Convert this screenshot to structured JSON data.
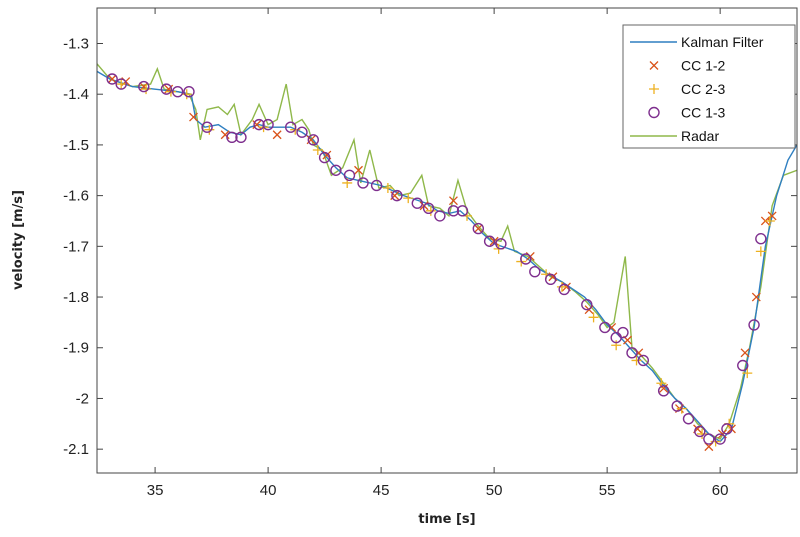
{
  "chart_data": {
    "type": "line",
    "title": "",
    "xlabel": "time [s]",
    "ylabel": "velocity [m/s]",
    "xlim": [
      32.43,
      63.4
    ],
    "ylim": [
      -2.147,
      -1.23
    ],
    "xticks": [
      35,
      40,
      45,
      50,
      55,
      60
    ],
    "yticks": [
      -1.3,
      -1.4,
      -1.5,
      -1.6,
      -1.7,
      -1.8,
      -1.9,
      -2,
      -2.1
    ],
    "ytick_labels": [
      "-1.3",
      "-1.4",
      "-1.5",
      "-1.6",
      "-1.7",
      "-1.8",
      "-1.9",
      "-2",
      "-2.1"
    ],
    "xtick_labels": [
      "35",
      "40",
      "45",
      "50",
      "55",
      "60"
    ],
    "grid": false,
    "legend_position": "top-right",
    "series": [
      {
        "name": "Kalman Filter",
        "style": "line",
        "color": "#2f7fc1",
        "points": [
          [
            32.43,
            -1.355
          ],
          [
            33,
            -1.37
          ],
          [
            34,
            -1.385
          ],
          [
            35,
            -1.39
          ],
          [
            36,
            -1.395
          ],
          [
            36.6,
            -1.4
          ],
          [
            36.8,
            -1.45
          ],
          [
            37.2,
            -1.465
          ],
          [
            37.8,
            -1.46
          ],
          [
            38.3,
            -1.475
          ],
          [
            38.8,
            -1.48
          ],
          [
            39.2,
            -1.465
          ],
          [
            39.6,
            -1.46
          ],
          [
            40,
            -1.465
          ],
          [
            41,
            -1.465
          ],
          [
            41.5,
            -1.475
          ],
          [
            42,
            -1.49
          ],
          [
            42.5,
            -1.52
          ],
          [
            43,
            -1.545
          ],
          [
            43.5,
            -1.565
          ],
          [
            44,
            -1.57
          ],
          [
            45,
            -1.58
          ],
          [
            46,
            -1.6
          ],
          [
            47,
            -1.615
          ],
          [
            47.5,
            -1.63
          ],
          [
            48,
            -1.635
          ],
          [
            48.5,
            -1.63
          ],
          [
            49,
            -1.65
          ],
          [
            49.5,
            -1.675
          ],
          [
            50,
            -1.695
          ],
          [
            51,
            -1.71
          ],
          [
            51.5,
            -1.725
          ],
          [
            52,
            -1.745
          ],
          [
            53,
            -1.77
          ],
          [
            54,
            -1.8
          ],
          [
            54.5,
            -1.825
          ],
          [
            55,
            -1.855
          ],
          [
            55.5,
            -1.875
          ],
          [
            56,
            -1.9
          ],
          [
            56.5,
            -1.925
          ],
          [
            57,
            -1.945
          ],
          [
            57.5,
            -1.975
          ],
          [
            58,
            -2.0
          ],
          [
            58.5,
            -2.02
          ],
          [
            59,
            -2.045
          ],
          [
            59.5,
            -2.07
          ],
          [
            60,
            -2.085
          ],
          [
            60.5,
            -2.06
          ],
          [
            61,
            -1.97
          ],
          [
            61.5,
            -1.86
          ],
          [
            62,
            -1.7
          ],
          [
            62.5,
            -1.6
          ],
          [
            63,
            -1.53
          ],
          [
            63.4,
            -1.5
          ]
        ]
      },
      {
        "name": "CC 1-2",
        "style": "x",
        "color": "#d95319",
        "points": [
          [
            33.1,
            -1.37
          ],
          [
            33.7,
            -1.375
          ],
          [
            34.5,
            -1.385
          ],
          [
            35.6,
            -1.39
          ],
          [
            36.7,
            -1.445
          ],
          [
            38.1,
            -1.48
          ],
          [
            39.5,
            -1.46
          ],
          [
            40.4,
            -1.48
          ],
          [
            41.9,
            -1.49
          ],
          [
            42.6,
            -1.52
          ],
          [
            44.0,
            -1.55
          ],
          [
            45.6,
            -1.6
          ],
          [
            46.9,
            -1.62
          ],
          [
            48.2,
            -1.61
          ],
          [
            49.3,
            -1.665
          ],
          [
            50.0,
            -1.69
          ],
          [
            51.6,
            -1.72
          ],
          [
            52.6,
            -1.76
          ],
          [
            53.2,
            -1.78
          ],
          [
            54.2,
            -1.825
          ],
          [
            55.2,
            -1.86
          ],
          [
            55.9,
            -1.885
          ],
          [
            56.4,
            -1.91
          ],
          [
            57.5,
            -1.98
          ],
          [
            58.2,
            -2.02
          ],
          [
            59.0,
            -2.06
          ],
          [
            59.5,
            -2.095
          ],
          [
            60.1,
            -2.07
          ],
          [
            60.5,
            -2.06
          ],
          [
            61.1,
            -1.91
          ],
          [
            61.6,
            -1.8
          ],
          [
            62.0,
            -1.65
          ],
          [
            62.3,
            -1.64
          ]
        ]
      },
      {
        "name": "CC 2-3",
        "style": "+",
        "color": "#edb120",
        "points": [
          [
            33.5,
            -1.38
          ],
          [
            34.6,
            -1.39
          ],
          [
            35.7,
            -1.395
          ],
          [
            36.4,
            -1.4
          ],
          [
            37.4,
            -1.47
          ],
          [
            39.8,
            -1.465
          ],
          [
            41.2,
            -1.47
          ],
          [
            42.2,
            -1.51
          ],
          [
            43.5,
            -1.575
          ],
          [
            45.3,
            -1.585
          ],
          [
            46.2,
            -1.605
          ],
          [
            47.2,
            -1.63
          ],
          [
            48.8,
            -1.64
          ],
          [
            50.2,
            -1.705
          ],
          [
            51.2,
            -1.73
          ],
          [
            52.3,
            -1.755
          ],
          [
            53.0,
            -1.78
          ],
          [
            54.4,
            -1.84
          ],
          [
            55.4,
            -1.895
          ],
          [
            56.3,
            -1.925
          ],
          [
            57.4,
            -1.97
          ],
          [
            58.3,
            -2.02
          ],
          [
            59.2,
            -2.07
          ],
          [
            59.8,
            -2.085
          ],
          [
            60.4,
            -2.05
          ],
          [
            61.2,
            -1.95
          ],
          [
            61.8,
            -1.71
          ],
          [
            62.2,
            -1.65
          ]
        ]
      },
      {
        "name": "CC 1-3",
        "style": "o",
        "color": "#7e2f8e",
        "points": [
          [
            33.1,
            -1.37
          ],
          [
            33.5,
            -1.38
          ],
          [
            34.5,
            -1.385
          ],
          [
            35.5,
            -1.39
          ],
          [
            36,
            -1.395
          ],
          [
            36.5,
            -1.395
          ],
          [
            37.3,
            -1.465
          ],
          [
            38.4,
            -1.485
          ],
          [
            38.8,
            -1.485
          ],
          [
            39.6,
            -1.46
          ],
          [
            40,
            -1.46
          ],
          [
            41,
            -1.465
          ],
          [
            41.5,
            -1.475
          ],
          [
            42,
            -1.49
          ],
          [
            42.5,
            -1.525
          ],
          [
            43,
            -1.55
          ],
          [
            43.6,
            -1.56
          ],
          [
            44.2,
            -1.575
          ],
          [
            44.8,
            -1.58
          ],
          [
            45.7,
            -1.6
          ],
          [
            46.6,
            -1.615
          ],
          [
            47.1,
            -1.625
          ],
          [
            47.6,
            -1.64
          ],
          [
            48.2,
            -1.63
          ],
          [
            48.6,
            -1.63
          ],
          [
            49.3,
            -1.665
          ],
          [
            49.8,
            -1.69
          ],
          [
            50.3,
            -1.695
          ],
          [
            51.4,
            -1.725
          ],
          [
            51.8,
            -1.75
          ],
          [
            52.5,
            -1.765
          ],
          [
            53.1,
            -1.785
          ],
          [
            54.1,
            -1.815
          ],
          [
            54.9,
            -1.86
          ],
          [
            55.4,
            -1.88
          ],
          [
            55.7,
            -1.87
          ],
          [
            56.1,
            -1.91
          ],
          [
            56.6,
            -1.925
          ],
          [
            57.5,
            -1.985
          ],
          [
            58.1,
            -2.015
          ],
          [
            58.6,
            -2.04
          ],
          [
            59.1,
            -2.065
          ],
          [
            59.5,
            -2.08
          ],
          [
            60,
            -2.08
          ],
          [
            60.3,
            -2.06
          ],
          [
            61,
            -1.935
          ],
          [
            61.5,
            -1.855
          ],
          [
            61.8,
            -1.685
          ]
        ]
      },
      {
        "name": "Radar",
        "style": "line",
        "color": "#8fb84a",
        "points": [
          [
            32.43,
            -1.34
          ],
          [
            33,
            -1.37
          ],
          [
            34,
            -1.385
          ],
          [
            34.8,
            -1.38
          ],
          [
            35.1,
            -1.35
          ],
          [
            35.4,
            -1.39
          ],
          [
            36,
            -1.395
          ],
          [
            36.5,
            -1.4
          ],
          [
            36.8,
            -1.43
          ],
          [
            37.0,
            -1.49
          ],
          [
            37.3,
            -1.43
          ],
          [
            37.8,
            -1.425
          ],
          [
            38.2,
            -1.44
          ],
          [
            38.5,
            -1.42
          ],
          [
            38.8,
            -1.48
          ],
          [
            39.3,
            -1.45
          ],
          [
            39.6,
            -1.42
          ],
          [
            40.0,
            -1.46
          ],
          [
            40.4,
            -1.45
          ],
          [
            40.8,
            -1.38
          ],
          [
            41.1,
            -1.46
          ],
          [
            41.5,
            -1.45
          ],
          [
            41.8,
            -1.47
          ],
          [
            42.0,
            -1.5
          ],
          [
            42.4,
            -1.51
          ],
          [
            42.8,
            -1.56
          ],
          [
            43.3,
            -1.545
          ],
          [
            43.8,
            -1.49
          ],
          [
            44.1,
            -1.575
          ],
          [
            44.5,
            -1.51
          ],
          [
            44.9,
            -1.585
          ],
          [
            45.4,
            -1.58
          ],
          [
            45.8,
            -1.6
          ],
          [
            46.3,
            -1.595
          ],
          [
            46.8,
            -1.56
          ],
          [
            47.1,
            -1.62
          ],
          [
            47.6,
            -1.625
          ],
          [
            48.0,
            -1.64
          ],
          [
            48.4,
            -1.57
          ],
          [
            48.8,
            -1.63
          ],
          [
            49.3,
            -1.66
          ],
          [
            49.8,
            -1.685
          ],
          [
            50.3,
            -1.69
          ],
          [
            50.6,
            -1.66
          ],
          [
            50.9,
            -1.71
          ],
          [
            51.5,
            -1.72
          ],
          [
            52.0,
            -1.74
          ],
          [
            52.5,
            -1.76
          ],
          [
            53.0,
            -1.77
          ],
          [
            53.6,
            -1.79
          ],
          [
            54.1,
            -1.81
          ],
          [
            54.6,
            -1.835
          ],
          [
            55.0,
            -1.86
          ],
          [
            55.3,
            -1.85
          ],
          [
            55.8,
            -1.72
          ],
          [
            56.1,
            -1.9
          ],
          [
            56.6,
            -1.92
          ],
          [
            57.0,
            -1.94
          ],
          [
            57.5,
            -1.97
          ],
          [
            58.0,
            -2.0
          ],
          [
            58.5,
            -2.02
          ],
          [
            59.0,
            -2.05
          ],
          [
            59.5,
            -2.07
          ],
          [
            60.0,
            -2.08
          ],
          [
            60.4,
            -2.05
          ],
          [
            60.9,
            -1.98
          ],
          [
            61.3,
            -1.9
          ],
          [
            61.8,
            -1.78
          ],
          [
            62.3,
            -1.62
          ],
          [
            62.8,
            -1.56
          ],
          [
            63.4,
            -1.55
          ]
        ]
      }
    ]
  }
}
